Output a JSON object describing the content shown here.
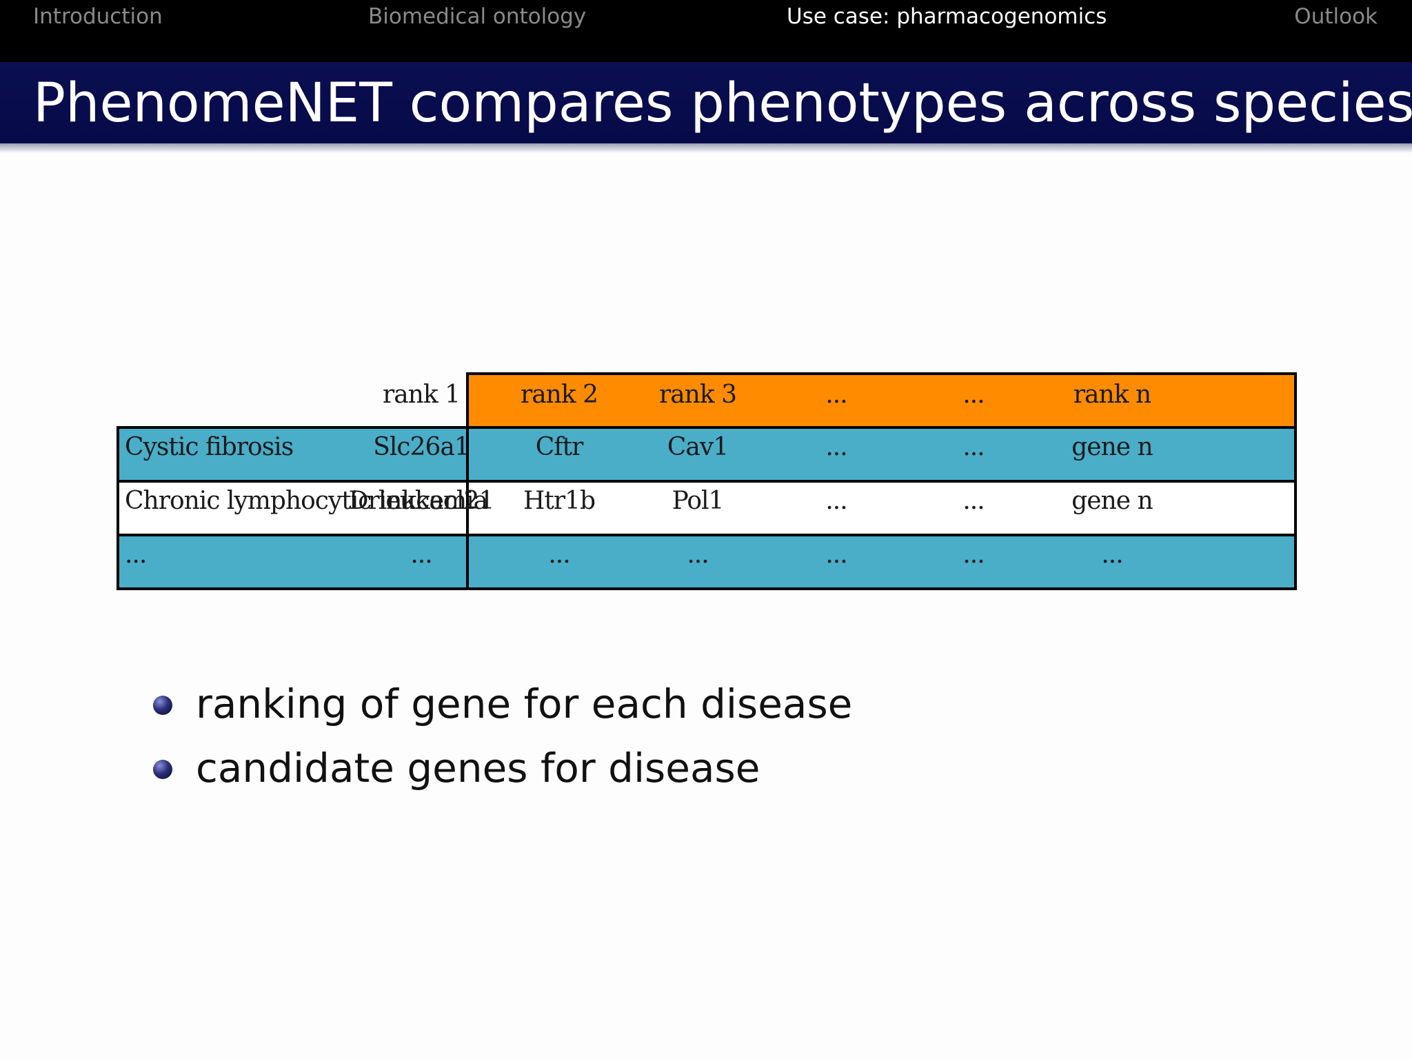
{
  "navigation": {
    "items": [
      {
        "label": "Introduction",
        "active": false
      },
      {
        "label": "Biomedical ontology",
        "active": false
      },
      {
        "label": "Use case:  pharmacogenomics",
        "active": true
      },
      {
        "label": "Outlook",
        "active": false
      }
    ]
  },
  "slide": {
    "title": "PhenomeNET compares phenotypes across species"
  },
  "table": {
    "header": [
      "rank 1",
      "rank 2",
      "rank 3",
      "...",
      "...",
      "rank n"
    ],
    "rows": [
      {
        "label": "Cystic fibrosis",
        "cells": [
          "Slc26a1",
          "Cftr",
          "Cav1",
          "...",
          "...",
          "gene n"
        ]
      },
      {
        "label": "Chronic lymphocytic leukemia",
        "cells": [
          "Drinkcacl21",
          "Htr1b",
          "Pol1",
          "...",
          "...",
          "gene n"
        ]
      },
      {
        "label": "...",
        "cells": [
          "...",
          "...",
          "...",
          "...",
          "...",
          "..."
        ]
      }
    ],
    "colors": {
      "header_bg": "#ff8c00",
      "row_blue": "#4aaec9",
      "row_white": "#ffffff",
      "border": "#000000"
    }
  },
  "bullets": [
    "ranking of gene for each disease",
    "candidate genes for disease"
  ]
}
